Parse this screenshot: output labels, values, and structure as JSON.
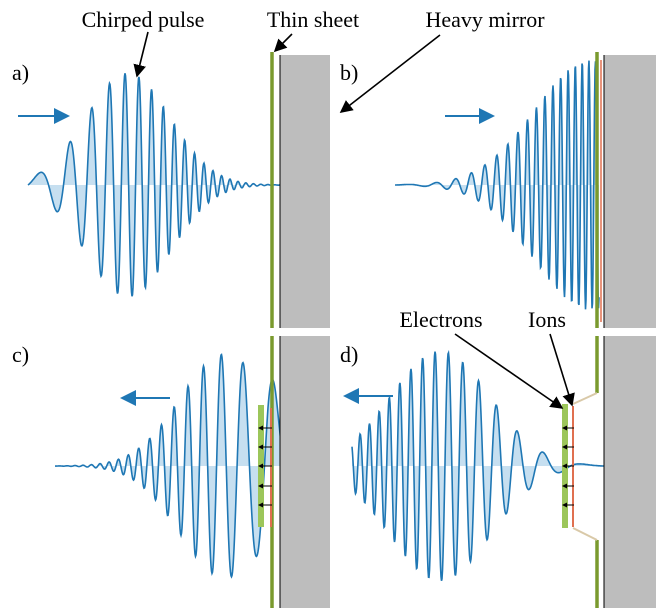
{
  "annotations": {
    "chirped_pulse": "Chirped pulse",
    "thin_sheet": "Thin sheet",
    "heavy_mirror": "Heavy mirror",
    "electrons": "Electrons",
    "ions": "Ions"
  },
  "panels": [
    {
      "label": "a)"
    },
    {
      "label": "b)"
    },
    {
      "label": "c)"
    },
    {
      "label": "d)"
    }
  ]
}
